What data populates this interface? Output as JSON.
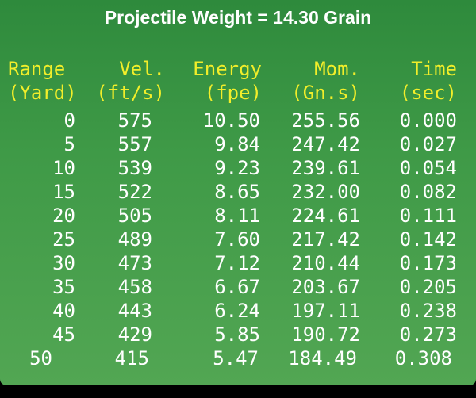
{
  "title": "Projectile Weight = 14.30 Grain",
  "colors": {
    "header_text": "#f2ee2a",
    "value_text": "#ffffff",
    "background": "#3f9a47"
  },
  "table": {
    "headers": [
      {
        "line1": "Range",
        "line2": "(Yard)"
      },
      {
        "line1": "Vel.",
        "line2": "(ft/s)"
      },
      {
        "line1": "Energy",
        "line2": "(fpe)"
      },
      {
        "line1": "Mom.",
        "line2": "(Gn.s)"
      },
      {
        "line1": "Time",
        "line2": "(sec)"
      }
    ],
    "rows": [
      [
        "0",
        "575",
        "10.50",
        "255.56",
        "0.000"
      ],
      [
        "5",
        "557",
        "9.84",
        "247.42",
        "0.027"
      ],
      [
        "10",
        "539",
        "9.23",
        "239.61",
        "0.054"
      ],
      [
        "15",
        "522",
        "8.65",
        "232.00",
        "0.082"
      ],
      [
        "20",
        "505",
        "8.11",
        "224.61",
        "0.111"
      ],
      [
        "25",
        "489",
        "7.60",
        "217.42",
        "0.142"
      ],
      [
        "30",
        "473",
        "7.12",
        "210.44",
        "0.173"
      ],
      [
        "35",
        "458",
        "6.67",
        "203.67",
        "0.205"
      ],
      [
        "40",
        "443",
        "6.24",
        "197.11",
        "0.238"
      ],
      [
        "45",
        "429",
        "5.85",
        "190.72",
        "0.273"
      ],
      [
        "50",
        "415",
        "5.47",
        "184.49",
        "0.308"
      ]
    ]
  }
}
